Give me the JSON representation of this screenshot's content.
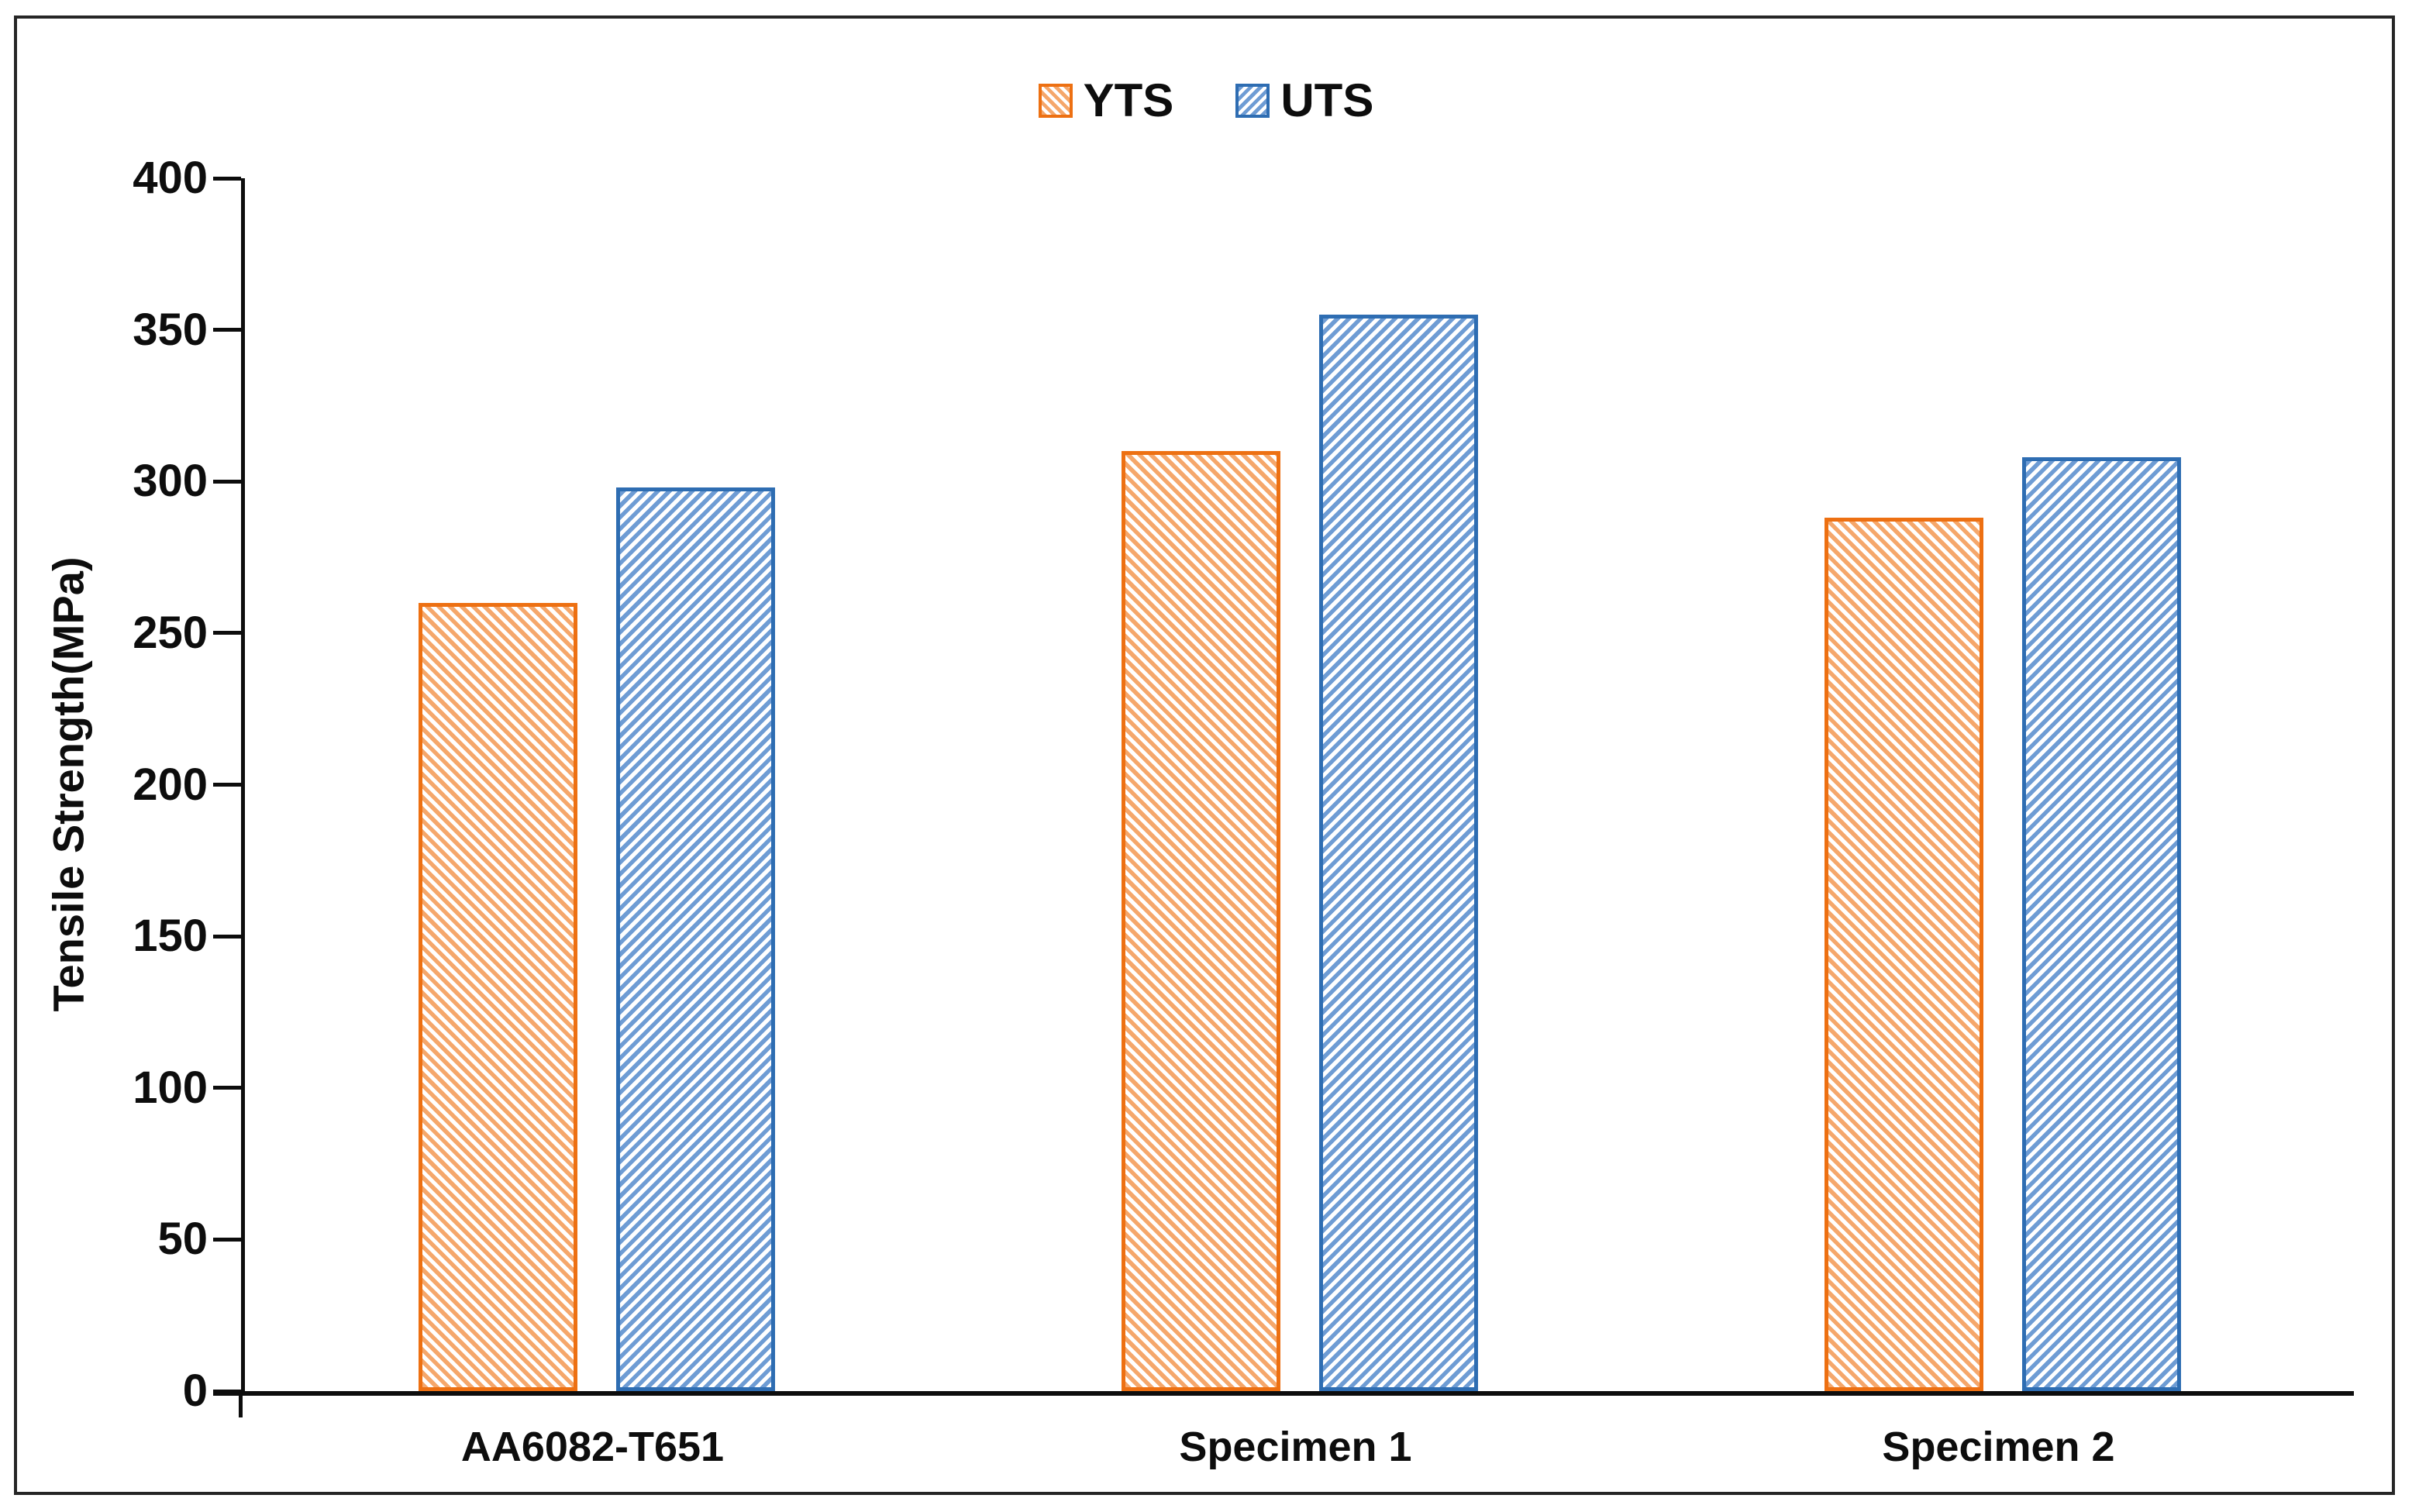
{
  "chart_data": {
    "type": "bar",
    "title": "",
    "categories": [
      "AA6082-T651",
      "Specimen 1",
      "Specimen 2"
    ],
    "series": [
      {
        "name": "YTS",
        "values": [
          260,
          310,
          288
        ],
        "stroke": "#ED7012",
        "stripe": "#F5A76B",
        "hatch": "backslash"
      },
      {
        "name": "UTS",
        "values": [
          298,
          355,
          308
        ],
        "stroke": "#2E6DB2",
        "stripe": "#6E9CD4",
        "hatch": "slash"
      }
    ],
    "xlabel": "",
    "ylabel": "Tensile Strength(MPa)",
    "ylim": [
      0,
      400
    ],
    "ytick_step": 50,
    "yticks": [
      0,
      50,
      100,
      150,
      200,
      250,
      300,
      350,
      400
    ],
    "grid": false,
    "legend_position": "top-center",
    "hatch_background": "#ffffff",
    "axis_color": "#0d0d0d",
    "frame_color": "#262626"
  }
}
